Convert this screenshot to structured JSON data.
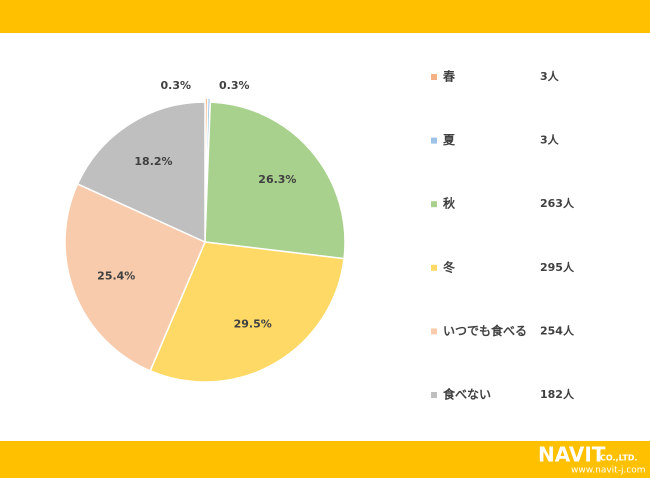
{
  "chart_data": {
    "type": "pie",
    "categories": [
      "春",
      "夏",
      "秋",
      "冬",
      "いつでも食べる",
      "食べない"
    ],
    "values": [
      0.3,
      0.3,
      26.3,
      29.5,
      25.4,
      18.2
    ],
    "value_labels": [
      "0.3%",
      "0.3%",
      "26.3%",
      "29.5%",
      "25.4%",
      "18.2%"
    ],
    "counts": [
      "3人",
      "3人",
      "263人",
      "295人",
      "254人",
      "182人"
    ],
    "colors": [
      "#f4b183",
      "#9dc3e6",
      "#a9d18e",
      "#ffd966",
      "#f8cbad",
      "#bfbfbf"
    ],
    "legend": "right"
  },
  "footer": {
    "logo": "NAVIT",
    "company": "CO.,LTD.",
    "url": "www.navit-j.com"
  }
}
